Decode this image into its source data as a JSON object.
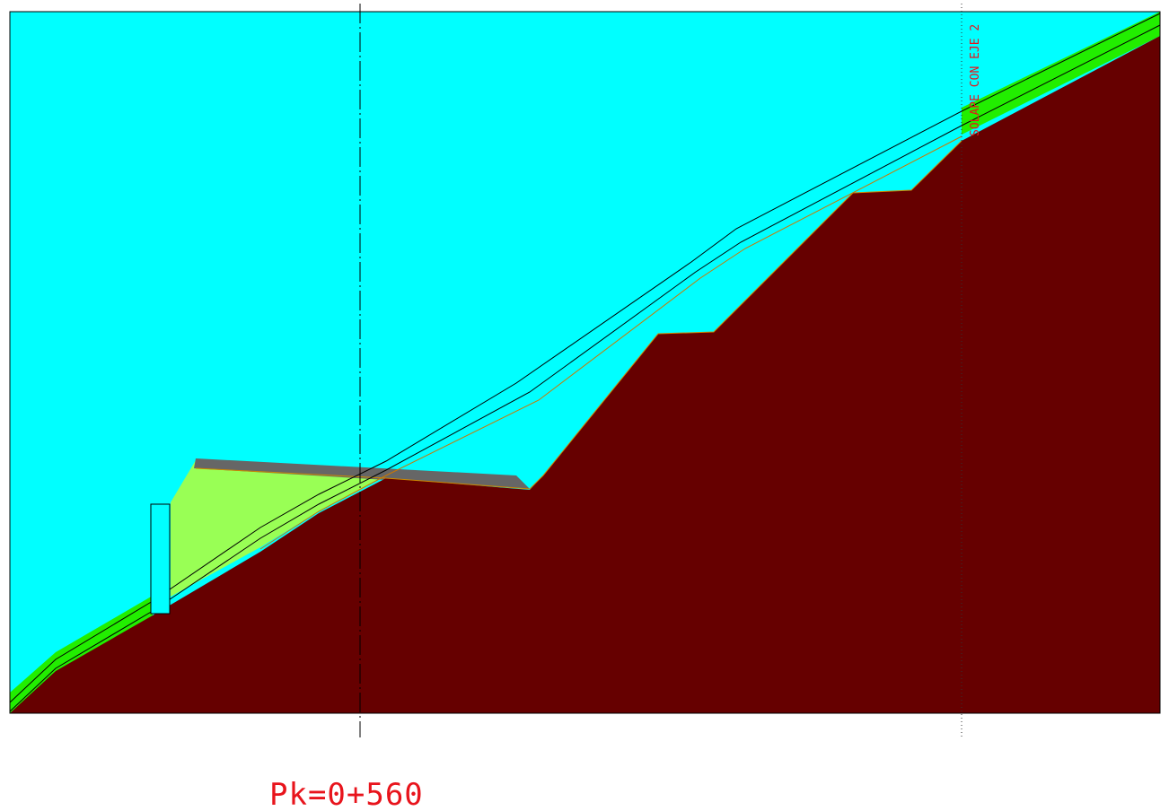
{
  "drawing": {
    "station_label": "Pk=0+560",
    "overlap_label": "SOLAPE CON EJE 2"
  },
  "colors": {
    "background": "#ffffff",
    "air": "#00ffff",
    "terrain": "#660000",
    "fill_embankment": "#99ff55",
    "green_layer": "#22ee00",
    "pavement": "#666666",
    "text": "#e8141c",
    "lines": "#000000"
  }
}
